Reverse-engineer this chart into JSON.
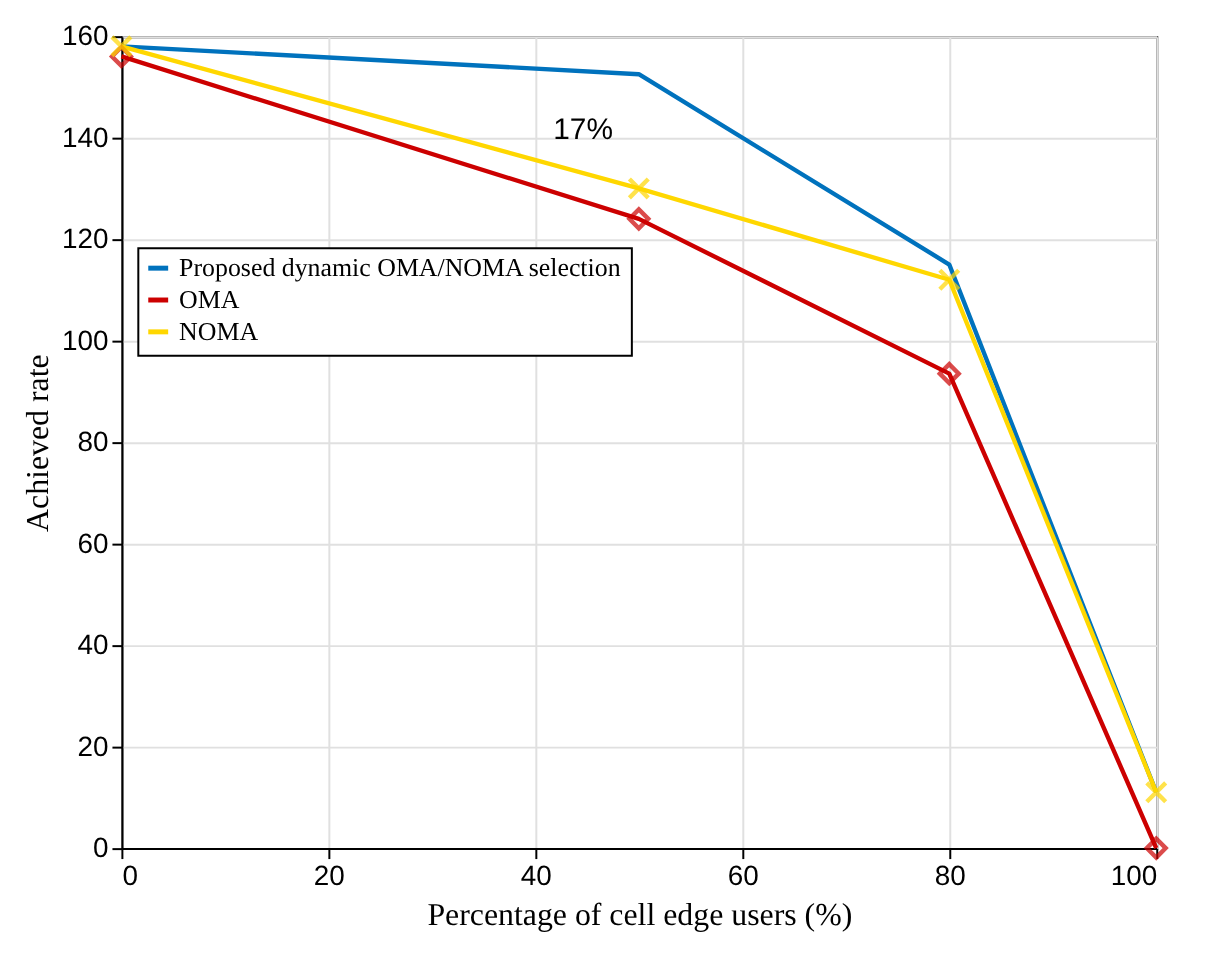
{
  "chart_data": {
    "type": "line",
    "xlabel": "Percentage of cell edge users (%)",
    "ylabel": "Achieved rate",
    "x": [
      0,
      50,
      80,
      100
    ],
    "series": [
      {
        "name": "Proposed dynamic OMA/NOMA selection",
        "color": "#0072bd",
        "values": [
          158,
          152.5,
          115,
          11
        ],
        "marker": "none"
      },
      {
        "name": "OMA",
        "color": "#cc0000",
        "values": [
          156,
          124,
          93.5,
          0
        ],
        "marker": "diamond"
      },
      {
        "name": "NOMA",
        "color": "#ffd700",
        "values": [
          158,
          130,
          112,
          11
        ],
        "marker": "cross"
      }
    ],
    "xlim": [
      0,
      100
    ],
    "xticks": [
      0,
      20,
      40,
      60,
      80,
      100
    ],
    "ylim": [
      0,
      160
    ],
    "yticks": [
      0,
      20,
      40,
      60,
      80,
      100,
      120,
      140,
      160
    ],
    "annotations": [
      "17%"
    ],
    "grid": true,
    "legend": "left"
  }
}
